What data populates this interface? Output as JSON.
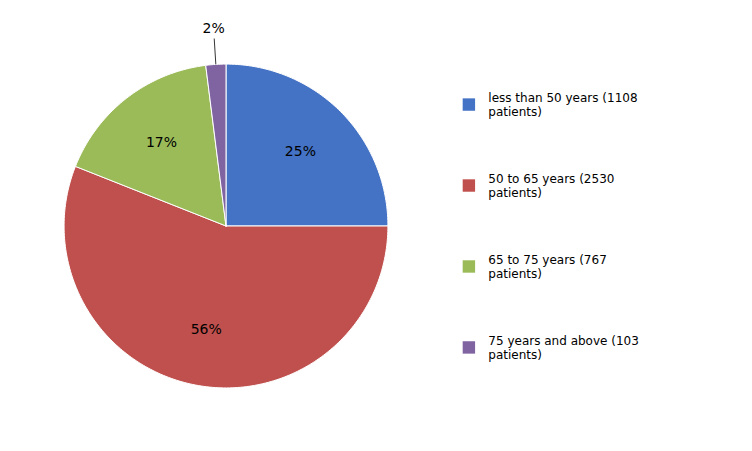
{
  "chart_data": {
    "type": "pie",
    "categories": [
      "less than 50 years (1108\npatients)",
      "50 to 65 years (2530\npatients)",
      "65 to 75 years (767\npatients)",
      "75 years and above (103\npatients)"
    ],
    "values": [
      25,
      56,
      17,
      2
    ],
    "value_labels": [
      "25%",
      "56%",
      "17%",
      "2%"
    ],
    "colors": [
      "#4472C4",
      "#C0504D",
      "#9BBB59",
      "#8064A2"
    ],
    "data_labels": true,
    "legend": "right"
  }
}
